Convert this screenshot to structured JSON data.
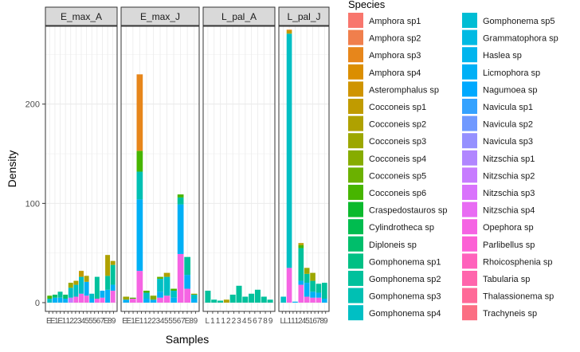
{
  "chart_data": {
    "type": "bar",
    "stacked": true,
    "xlabel": "Samples",
    "ylabel": "Density",
    "ylim": [
      0,
      290
    ],
    "yticks": [
      0,
      100,
      200
    ],
    "legend": {
      "title": "Species",
      "placement": "right",
      "columns": 2,
      "entries": [
        {
          "name": "Amphora sp1",
          "color": "#F8766D"
        },
        {
          "name": "Amphora sp2",
          "color": "#F07F4D"
        },
        {
          "name": "Amphora sp3",
          "color": "#E7861B"
        },
        {
          "name": "Amphora sp4",
          "color": "#DB8E00"
        },
        {
          "name": "Asteromphalus sp",
          "color": "#CF9400"
        },
        {
          "name": "Cocconeis sp1",
          "color": "#C09B00"
        },
        {
          "name": "Cocconeis sp2",
          "color": "#AFA100"
        },
        {
          "name": "Cocconeis sp3",
          "color": "#9CA700"
        },
        {
          "name": "Cocconeis sp4",
          "color": "#86AC00"
        },
        {
          "name": "Cocconeis sp5",
          "color": "#6BB100"
        },
        {
          "name": "Cocconeis sp6",
          "color": "#47B500"
        },
        {
          "name": "Craspedostauros sp",
          "color": "#0BB92D"
        },
        {
          "name": "Cylindrotheca sp",
          "color": "#00BC4F"
        },
        {
          "name": "Diploneis sp",
          "color": "#00BE6B"
        },
        {
          "name": "Gomphonema sp1",
          "color": "#00C084"
        },
        {
          "name": "Gomphonema sp2",
          "color": "#00C19C"
        },
        {
          "name": "Gomphonema sp3",
          "color": "#00C0B3"
        },
        {
          "name": "Gomphonema sp4",
          "color": "#00BFC4"
        },
        {
          "name": "Gomphonema sp5",
          "color": "#00BDD4"
        },
        {
          "name": "Grammatophora sp",
          "color": "#00BAE3"
        },
        {
          "name": "Haslea sp",
          "color": "#00B5EE"
        },
        {
          "name": "Licmophora sp",
          "color": "#00B0F6"
        },
        {
          "name": "Nagumoea sp",
          "color": "#00A9FF"
        },
        {
          "name": "Navicula sp1",
          "color": "#35A2FF"
        },
        {
          "name": "Navicula sp2",
          "color": "#7099FF"
        },
        {
          "name": "Navicula sp3",
          "color": "#9590FF"
        },
        {
          "name": "Nitzschia sp1",
          "color": "#B186FF"
        },
        {
          "name": "Nitzschia sp2",
          "color": "#C77CFF"
        },
        {
          "name": "Nitzschia sp3",
          "color": "#D973FC"
        },
        {
          "name": "Nitzschia sp4",
          "color": "#E86BF3"
        },
        {
          "name": "Opephora sp",
          "color": "#F564E3"
        },
        {
          "name": "Parlibellus sp",
          "color": "#FC61D5"
        },
        {
          "name": "Rhoicosphenia sp",
          "color": "#FF62BC"
        },
        {
          "name": "Tabularia sp",
          "color": "#FF65AC"
        },
        {
          "name": "Thalassionema sp",
          "color": "#FF6A98"
        },
        {
          "name": "Trachyneis sp",
          "color": "#FB6F83"
        }
      ]
    },
    "facets": [
      {
        "name": "E_max_A",
        "x_tick_labels": [
          "E",
          "E",
          "1",
          "E",
          "1",
          "1",
          "2",
          "2",
          "3",
          "4",
          "5",
          "5",
          "5",
          "6",
          "7",
          "E",
          "8",
          "9"
        ],
        "bars": [
          {
            "stack": [
              [
                "Gomphonema sp4",
                4
              ],
              [
                "Cocconeis sp6",
                3
              ]
            ]
          },
          {
            "stack": [
              [
                "Licmophora sp",
                5
              ],
              [
                "Diploneis sp",
                3
              ]
            ]
          },
          {
            "stack": [
              [
                "Licmophora sp",
                5
              ],
              [
                "Gomphonema sp2",
                6
              ]
            ]
          },
          {
            "stack": [
              [
                "Licmophora sp",
                4
              ],
              [
                "Diploneis sp",
                4
              ]
            ]
          },
          {
            "stack": [
              [
                "Nitzschia sp2",
                5
              ],
              [
                "Gomphonema sp4",
                10
              ],
              [
                "Cocconeis sp3",
                5
              ]
            ]
          },
          {
            "stack": [
              [
                "Opephora sp",
                6
              ],
              [
                "Gomphonema sp4",
                12
              ],
              [
                "Cocconeis sp2",
                4
              ]
            ]
          },
          {
            "stack": [
              [
                "Opephora sp",
                9
              ],
              [
                "Gomphonema sp4",
                17
              ],
              [
                "Cocconeis sp1",
                6
              ]
            ]
          },
          {
            "stack": [
              [
                "Opephora sp",
                7
              ],
              [
                "Licmophora sp",
                14
              ],
              [
                "Cocconeis sp2",
                6
              ]
            ]
          },
          {
            "stack": [
              [
                "Licmophora sp",
                4
              ],
              [
                "Gomphonema sp4",
                5
              ]
            ]
          },
          {
            "stack": [
              [
                "Opephora sp",
                4
              ],
              [
                "Gomphonema sp2",
                22
              ]
            ]
          },
          {
            "stack": [
              [
                "Opephora sp",
                5
              ],
              [
                "Licmophora sp",
                7
              ]
            ]
          },
          {
            "stack": [
              [
                "Licmophora sp",
                13
              ],
              [
                "Gomphonema sp2",
                14
              ],
              [
                "Cocconeis sp2",
                21
              ]
            ]
          },
          {
            "stack": [
              [
                "Opephora sp",
                12
              ],
              [
                "Licmophora sp",
                6
              ],
              [
                "Gomphonema sp2",
                20
              ],
              [
                "Cocconeis sp2",
                4
              ]
            ]
          }
        ]
      },
      {
        "name": "E_max_J",
        "x_tick_labels": [
          "E",
          "E",
          "1",
          "E",
          "1",
          "1",
          "2",
          "2",
          "3",
          "4",
          "5",
          "5",
          "5",
          "6",
          "7",
          "E",
          "8",
          "9"
        ],
        "bars": [
          {
            "stack": [
              [
                "Licmophora sp",
                3
              ],
              [
                "Cocconeis sp3",
                3
              ]
            ]
          },
          {
            "stack": [
              [
                "Opephora sp",
                4
              ],
              [
                "Cocconeis sp6",
                1
              ]
            ]
          },
          {
            "stack": [
              [
                "Opephora sp",
                32
              ],
              [
                "Licmophora sp",
                72
              ],
              [
                "Gomphonema sp3",
                28
              ],
              [
                "Cocconeis sp6",
                21
              ],
              [
                "Amphora sp3",
                77
              ]
            ]
          },
          {
            "stack": [
              [
                "Licmophora sp",
                4
              ],
              [
                "Gomphonema sp4",
                6
              ],
              [
                "Cocconeis sp6",
                2
              ]
            ]
          },
          {
            "stack": [
              [
                "Licmophora sp",
                3
              ],
              [
                "Cocconeis sp4",
                4
              ]
            ]
          },
          {
            "stack": [
              [
                "Opephora sp",
                5
              ],
              [
                "Licmophora sp",
                6
              ],
              [
                "Gomphonema sp4",
                13
              ],
              [
                "Cocconeis sp5",
                2
              ]
            ]
          },
          {
            "stack": [
              [
                "Opephora sp",
                7
              ],
              [
                "Gomphonema sp4",
                19
              ],
              [
                "Cocconeis sp2",
                4
              ]
            ]
          },
          {
            "stack": [
              [
                "Licmophora sp",
                5
              ],
              [
                "Gomphonema sp4",
                7
              ],
              [
                "Cocconeis sp6",
                2
              ]
            ]
          },
          {
            "stack": [
              [
                "Opephora sp",
                49
              ],
              [
                "Licmophora sp",
                50
              ],
              [
                "Gomphonema sp2",
                7
              ],
              [
                "Cocconeis sp6",
                3
              ]
            ]
          },
          {
            "stack": [
              [
                "Opephora sp",
                14
              ],
              [
                "Licmophora sp",
                14
              ],
              [
                "Gomphonema sp2",
                18
              ]
            ]
          },
          {
            "stack": [
              [
                "Licmophora sp",
                4
              ],
              [
                "Gomphonema sp4",
                4
              ],
              [
                "Cocconeis sp3",
                1
              ]
            ]
          }
        ]
      },
      {
        "name": "L_pal_A",
        "x_tick_labels": [
          "L",
          "1",
          "1",
          "1",
          "2",
          "2",
          "3",
          "4",
          "5",
          "6",
          "7",
          "8",
          "9"
        ],
        "bars": [
          {
            "stack": [
              [
                "Gomphonema sp2",
                12
              ]
            ]
          },
          {
            "stack": [
              [
                "Gomphonema sp2",
                3
              ]
            ]
          },
          {
            "stack": [
              [
                "Gomphonema sp2",
                2
              ]
            ]
          },
          {
            "stack": [
              [
                "Cocconeis sp2",
                3
              ]
            ]
          },
          {
            "stack": [
              [
                "Gomphonema sp2",
                8
              ]
            ]
          },
          {
            "stack": [
              [
                "Gomphonema sp2",
                17
              ]
            ]
          },
          {
            "stack": [
              [
                "Gomphonema sp2",
                6
              ]
            ]
          },
          {
            "stack": [
              [
                "Gomphonema sp2",
                9
              ]
            ]
          },
          {
            "stack": [
              [
                "Gomphonema sp2",
                13
              ]
            ]
          },
          {
            "stack": [
              [
                "Gomphonema sp2",
                6
              ]
            ]
          },
          {
            "stack": [
              [
                "Gomphonema sp2",
                3
              ]
            ]
          }
        ]
      },
      {
        "name": "L_pal_J",
        "x_tick_labels": [
          "L",
          "L",
          "1",
          "1",
          "1",
          "2",
          "4",
          "5",
          "1",
          "6",
          "7",
          "8",
          "9"
        ],
        "bars": [
          {
            "stack": [
              [
                "Gomphonema sp4",
                6
              ]
            ]
          },
          {
            "stack": [
              [
                "Opephora sp",
                35
              ],
              [
                "Gomphonema sp4",
                236
              ],
              [
                "Cocconeis sp1",
                3
              ],
              [
                "Amphora sp3",
                1
              ]
            ]
          },
          {
            "stack": [
              [
                "Licmophora sp",
                1
              ]
            ]
          },
          {
            "stack": [
              [
                "Opephora sp",
                18
              ],
              [
                "Licmophora sp",
                4
              ],
              [
                "Gomphonema sp2",
                33
              ],
              [
                "Cocconeis sp6",
                3
              ],
              [
                "Cocconeis sp1",
                2
              ]
            ]
          },
          {
            "stack": [
              [
                "Opephora sp",
                6
              ],
              [
                "Licmophora sp",
                14
              ],
              [
                "Gomphonema sp2",
                9
              ],
              [
                "Cocconeis sp3",
                6
              ]
            ]
          },
          {
            "stack": [
              [
                "Opephora sp",
                5
              ],
              [
                "Licmophora sp",
                6
              ],
              [
                "Gomphonema sp2",
                11
              ],
              [
                "Cocconeis sp3",
                8
              ]
            ]
          },
          {
            "stack": [
              [
                "Opephora sp",
                5
              ],
              [
                "Licmophora sp",
                5
              ],
              [
                "Gomphonema sp2",
                9
              ]
            ]
          },
          {
            "stack": [
              [
                "Licmophora sp",
                4
              ],
              [
                "Gomphonema sp2",
                16
              ]
            ]
          }
        ]
      }
    ]
  }
}
